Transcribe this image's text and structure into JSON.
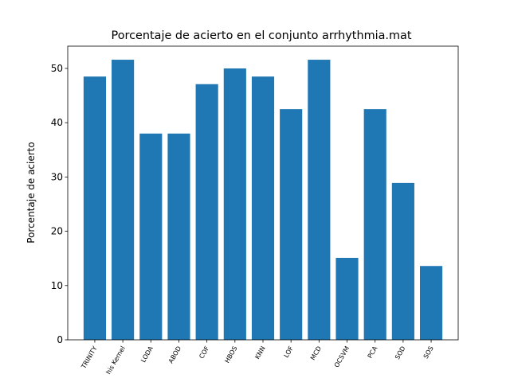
{
  "chart_data": {
    "type": "bar",
    "title": "Porcentaje de acierto en el conjunto arrhythmia.mat",
    "y_label": "Porcentaje de acierto",
    "categories": [
      "TRINITY",
      "his Kernel",
      "LODA",
      "ABOD",
      "COF",
      "HBOS",
      "KNN",
      "LOF",
      "MCD",
      "OCSVM",
      "PCA",
      "SOD",
      "SOS"
    ],
    "values": [
      48.5,
      51.6,
      38.0,
      38.0,
      47.1,
      50.0,
      48.5,
      42.5,
      51.6,
      15.1,
      42.5,
      28.9,
      13.6
    ],
    "color": "#1f77b4",
    "ylim": [
      0,
      54.1
    ],
    "yticks": [
      0,
      10,
      20,
      30,
      40,
      50
    ],
    "grid": false
  }
}
